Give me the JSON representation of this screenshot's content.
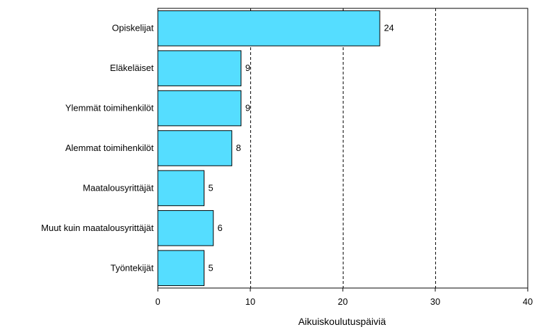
{
  "chart_data": {
    "type": "bar",
    "orientation": "horizontal",
    "categories": [
      "Opiskelijat",
      "Eläkeläiset",
      "Ylemmät toimihenkilöt",
      "Alemmat toimihenkilöt",
      "Maatalousyrittäjät",
      "Muut kuin maatalousyrittäjät",
      "Työntekijät"
    ],
    "values": [
      24,
      9,
      9,
      8,
      5,
      6,
      5
    ],
    "data_labels": [
      "24",
      "9",
      "9",
      "8",
      "5",
      "6",
      "5"
    ],
    "xlabel": "Aikuiskoulutuspäiviä",
    "ylabel": "",
    "xlim": [
      0,
      40
    ],
    "xticks": [
      0,
      10,
      20,
      30,
      40
    ],
    "xtick_labels": [
      "0",
      "10",
      "20",
      "30",
      "40"
    ],
    "grid": "vertical dashed",
    "legend": "none",
    "colors": {
      "bar_fill": "#55DDFF",
      "bar_stroke": "#000000",
      "grid": "#000000",
      "frame": "#000000"
    }
  }
}
